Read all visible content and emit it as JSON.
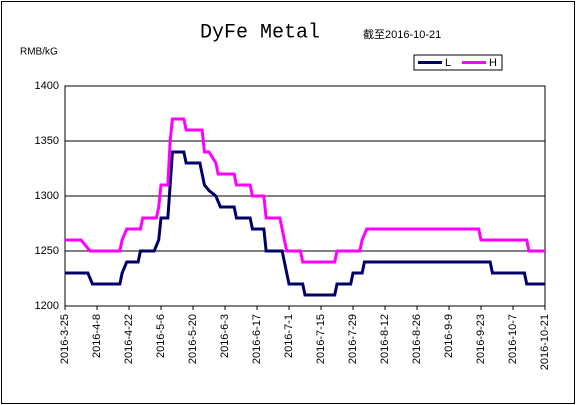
{
  "chart_data": {
    "type": "line",
    "title": "DyFe Metal",
    "subtitle": "截至2016-10-21",
    "y_label": "RMB/kG",
    "xlim": [
      "2016-3-25",
      "2016-10-21"
    ],
    "xticks": [
      "2016-3-25",
      "2016-4-8",
      "2016-4-22",
      "2016-5-6",
      "2016-5-20",
      "2016-6-3",
      "2016-6-17",
      "2016-7-1",
      "2016-7-15",
      "2016-7-29",
      "2016-8-12",
      "2016-8-26",
      "2016-9-9",
      "2016-9-23",
      "2016-10-7",
      "2016-10-21"
    ],
    "ylim": [
      1200,
      1400
    ],
    "yticks": [
      1200,
      1250,
      1300,
      1350,
      1400
    ],
    "grid": true,
    "legend": "top-right",
    "series": [
      {
        "name": "L",
        "color": "#000066",
        "x": [
          "2016-3-25",
          "2016-4-4",
          "2016-4-6",
          "2016-4-18",
          "2016-4-19",
          "2016-4-21",
          "2016-4-26",
          "2016-4-27",
          "2016-5-3",
          "2016-5-5",
          "2016-5-6",
          "2016-5-9",
          "2016-5-10",
          "2016-5-11",
          "2016-5-16",
          "2016-5-17",
          "2016-5-23",
          "2016-5-25",
          "2016-5-27",
          "2016-5-30",
          "2016-6-1",
          "2016-6-7",
          "2016-6-8",
          "2016-6-14",
          "2016-6-15",
          "2016-6-20",
          "2016-6-21",
          "2016-6-28",
          "2016-6-29",
          "2016-6-30",
          "2016-7-1",
          "2016-7-7",
          "2016-7-8",
          "2016-7-21",
          "2016-7-22",
          "2016-7-28",
          "2016-7-29",
          "2016-8-2",
          "2016-8-3",
          "2016-9-27",
          "2016-9-28",
          "2016-10-12",
          "2016-10-13",
          "2016-10-21"
        ],
        "values": [
          1230,
          1230,
          1220,
          1220,
          1230,
          1240,
          1240,
          1250,
          1250,
          1260,
          1280,
          1280,
          1310,
          1340,
          1340,
          1330,
          1330,
          1310,
          1305,
          1300,
          1290,
          1290,
          1280,
          1280,
          1270,
          1270,
          1250,
          1250,
          1240,
          1230,
          1220,
          1220,
          1210,
          1210,
          1220,
          1220,
          1230,
          1230,
          1240,
          1240,
          1230,
          1230,
          1220,
          1220
        ]
      },
      {
        "name": "H",
        "color": "#ff00ff",
        "x": [
          "2016-3-25",
          "2016-4-1",
          "2016-4-5",
          "2016-4-18",
          "2016-4-19",
          "2016-4-21",
          "2016-4-27",
          "2016-4-28",
          "2016-5-4",
          "2016-5-5",
          "2016-5-6",
          "2016-5-9",
          "2016-5-10",
          "2016-5-11",
          "2016-5-16",
          "2016-5-17",
          "2016-5-24",
          "2016-5-25",
          "2016-5-27",
          "2016-5-30",
          "2016-5-31",
          "2016-6-7",
          "2016-6-8",
          "2016-6-14",
          "2016-6-15",
          "2016-6-20",
          "2016-6-21",
          "2016-6-27",
          "2016-6-28",
          "2016-6-30",
          "2016-7-6",
          "2016-7-7",
          "2016-7-21",
          "2016-7-22",
          "2016-8-1",
          "2016-8-2",
          "2016-8-4",
          "2016-9-22",
          "2016-9-23",
          "2016-10-13",
          "2016-10-14",
          "2016-10-21"
        ],
        "values": [
          1260,
          1260,
          1250,
          1250,
          1260,
          1270,
          1270,
          1280,
          1280,
          1290,
          1310,
          1310,
          1350,
          1370,
          1370,
          1360,
          1360,
          1340,
          1340,
          1330,
          1320,
          1320,
          1310,
          1310,
          1300,
          1300,
          1280,
          1280,
          1270,
          1250,
          1250,
          1240,
          1240,
          1250,
          1250,
          1260,
          1270,
          1270,
          1260,
          1260,
          1250,
          1250
        ]
      }
    ]
  }
}
